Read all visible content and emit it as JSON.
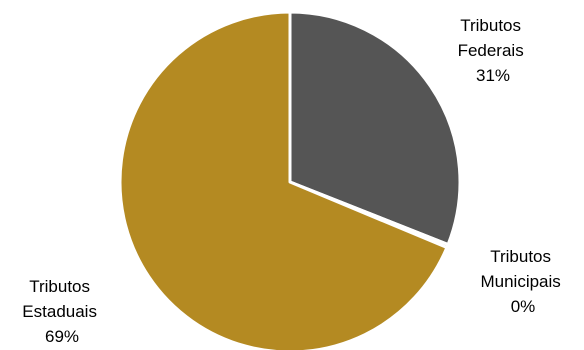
{
  "chart_data": {
    "type": "pie",
    "title": "",
    "start_angle_deg": 0,
    "direction": "clockwise",
    "legend": "none",
    "slices": [
      {
        "label_lines": [
          "Tributos",
          "Federais"
        ],
        "percent_label": "31%",
        "value": 31,
        "color": "#555555"
      },
      {
        "label_lines": [
          "Tributos",
          "Municipais"
        ],
        "percent_label": "0%",
        "value": 0.3,
        "color": "#888888"
      },
      {
        "label_lines": [
          "Tributos",
          "Estaduais"
        ],
        "percent_label": "69%",
        "value": 68.7,
        "color": "#B48A22"
      }
    ]
  }
}
